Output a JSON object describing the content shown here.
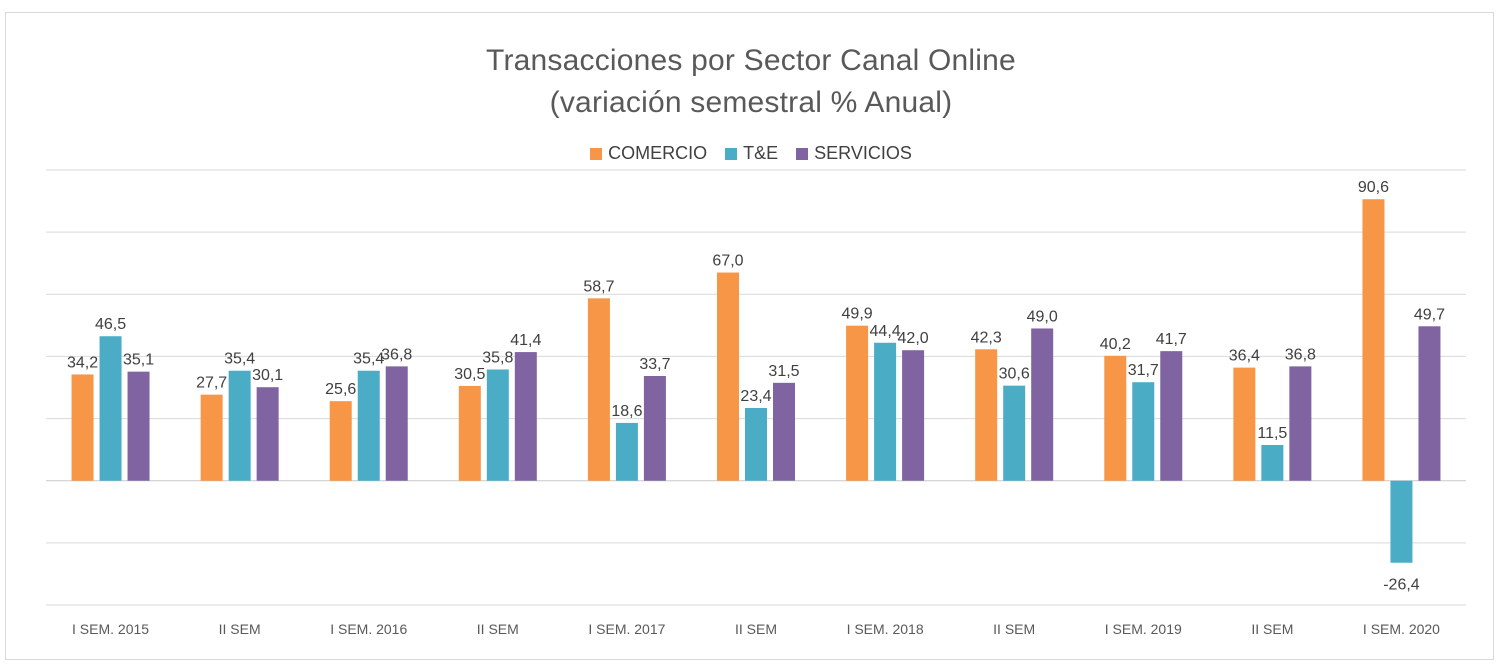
{
  "chart_data": {
    "type": "bar",
    "title": "Transacciones por Sector Canal Online",
    "subtitle": "(variación semestral % Anual)",
    "xlabel": "",
    "ylabel": "",
    "ylim": [
      -40,
      100
    ],
    "grid": true,
    "legend_position": "top-center",
    "categories": [
      "I SEM. 2015",
      "II SEM",
      "I SEM. 2016",
      "II SEM",
      "I SEM. 2017",
      "II SEM",
      "I SEM. 2018",
      "II SEM",
      "I SEM. 2019",
      "II SEM",
      "I SEM. 2020"
    ],
    "series": [
      {
        "name": "COMERCIO",
        "color": "#f79646",
        "values": [
          34.2,
          27.7,
          25.6,
          30.5,
          58.7,
          67.0,
          49.9,
          42.3,
          40.2,
          36.4,
          90.6
        ],
        "labels": [
          "34,2",
          "27,7",
          "25,6",
          "30,5",
          "58,7",
          "67,0",
          "49,9",
          "42,3",
          "40,2",
          "36,4",
          "90,6"
        ]
      },
      {
        "name": "T&E",
        "color": "#4bacc6",
        "values": [
          46.5,
          35.4,
          35.4,
          35.8,
          18.6,
          23.4,
          44.4,
          30.6,
          31.7,
          11.5,
          -26.4
        ],
        "labels": [
          "46,5",
          "35,4",
          "35,4",
          "35,8",
          "18,6",
          "23,4",
          "44,4",
          "30,6",
          "31,7",
          "11,5",
          "-26,4"
        ]
      },
      {
        "name": "SERVICIOS",
        "color": "#8064a2",
        "values": [
          35.1,
          30.1,
          36.8,
          41.4,
          33.7,
          31.5,
          42.0,
          49.0,
          41.7,
          36.8,
          49.7
        ],
        "labels": [
          "35,1",
          "30,1",
          "36,8",
          "41,4",
          "33,7",
          "31,5",
          "42,0",
          "49,0",
          "41,7",
          "36,8",
          "49,7"
        ]
      }
    ]
  }
}
